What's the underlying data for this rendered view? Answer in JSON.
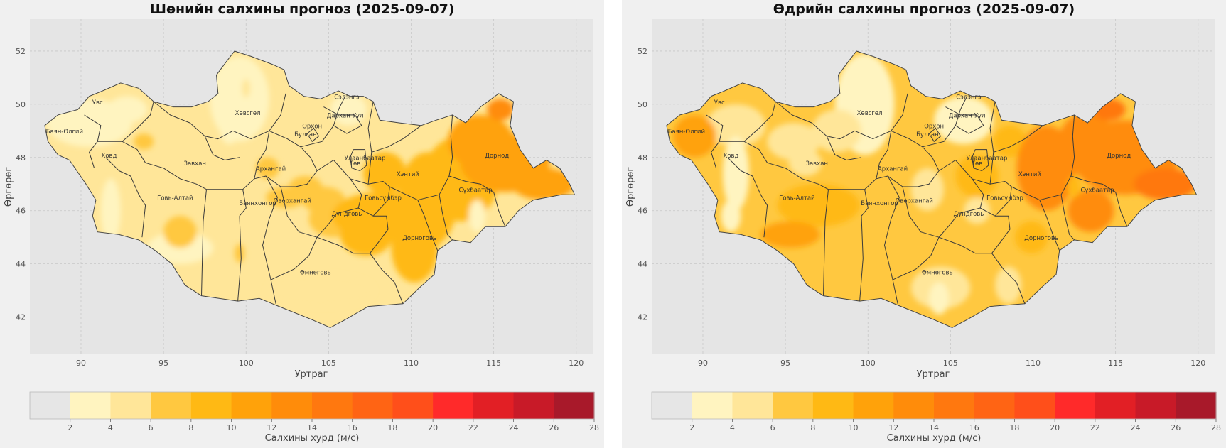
{
  "maps": [
    {
      "id": "night",
      "title": "Шөнийн салхины прогноз (2025-09-07)",
      "xlabel": "Уртраг",
      "ylabel": "Өргөрөг",
      "colorbar_label": "Салхины хурд (м/с)",
      "field": "night"
    },
    {
      "id": "day",
      "title": "Өдрийн салхины прогноз (2025-09-07)",
      "xlabel": "Уртраг",
      "ylabel": "Өргөрөг",
      "colorbar_label": "Салхины хурд (м/с)",
      "field": "day"
    }
  ],
  "x_ticks": [
    90,
    95,
    100,
    105,
    110,
    115,
    120
  ],
  "y_ticks": [
    42,
    44,
    46,
    48,
    50,
    52
  ],
  "colorbar": {
    "ticks": [
      2,
      4,
      6,
      8,
      10,
      12,
      14,
      16,
      18,
      20,
      22,
      24,
      26,
      28
    ],
    "colors": [
      "#e6e6e6",
      "#fff4c0",
      "#ffe699",
      "#ffc840",
      "#ffb914",
      "#ffa20a",
      "#ff8c0a",
      "#ff780f",
      "#ff6414",
      "#ff4f1a",
      "#ff2a2a",
      "#e21f25",
      "#c81a28",
      "#a8192a"
    ]
  },
  "aimags": [
    {
      "name": "Увс",
      "lon": 91.0,
      "lat": 50.0
    },
    {
      "name": "Баян-Өлгий",
      "lon": 89.0,
      "lat": 48.9
    },
    {
      "name": "Ховд",
      "lon": 91.7,
      "lat": 48.0
    },
    {
      "name": "Завхан",
      "lon": 96.9,
      "lat": 47.7
    },
    {
      "name": "Хөвсгөл",
      "lon": 100.1,
      "lat": 49.6
    },
    {
      "name": "Сэлэнгэ",
      "lon": 106.1,
      "lat": 50.2
    },
    {
      "name": "Дархан-Уул",
      "lon": 106.0,
      "lat": 49.5
    },
    {
      "name": "Орхон",
      "lon": 104.0,
      "lat": 49.1
    },
    {
      "name": "Булган",
      "lon": 103.6,
      "lat": 48.8
    },
    {
      "name": "Архангай",
      "lon": 101.5,
      "lat": 47.5
    },
    {
      "name": "Улаанбаатар",
      "lon": 107.2,
      "lat": 47.9
    },
    {
      "name": "Төв",
      "lon": 106.6,
      "lat": 47.7
    },
    {
      "name": "Хэнтий",
      "lon": 109.8,
      "lat": 47.3
    },
    {
      "name": "Дорнод",
      "lon": 115.2,
      "lat": 48.0
    },
    {
      "name": "Сүхбаатар",
      "lon": 113.9,
      "lat": 46.7
    },
    {
      "name": "Говь-Алтай",
      "lon": 95.7,
      "lat": 46.4
    },
    {
      "name": "Баянхонгор",
      "lon": 100.7,
      "lat": 46.2
    },
    {
      "name": "Өвөрхангай",
      "lon": 102.8,
      "lat": 46.3
    },
    {
      "name": "Говьсүмбэр",
      "lon": 108.3,
      "lat": 46.4
    },
    {
      "name": "Дундговь",
      "lon": 106.1,
      "lat": 45.8
    },
    {
      "name": "Дорноговь",
      "lon": 110.5,
      "lat": 44.9
    },
    {
      "name": "Өмнөговь",
      "lon": 104.2,
      "lat": 43.6
    }
  ]
}
